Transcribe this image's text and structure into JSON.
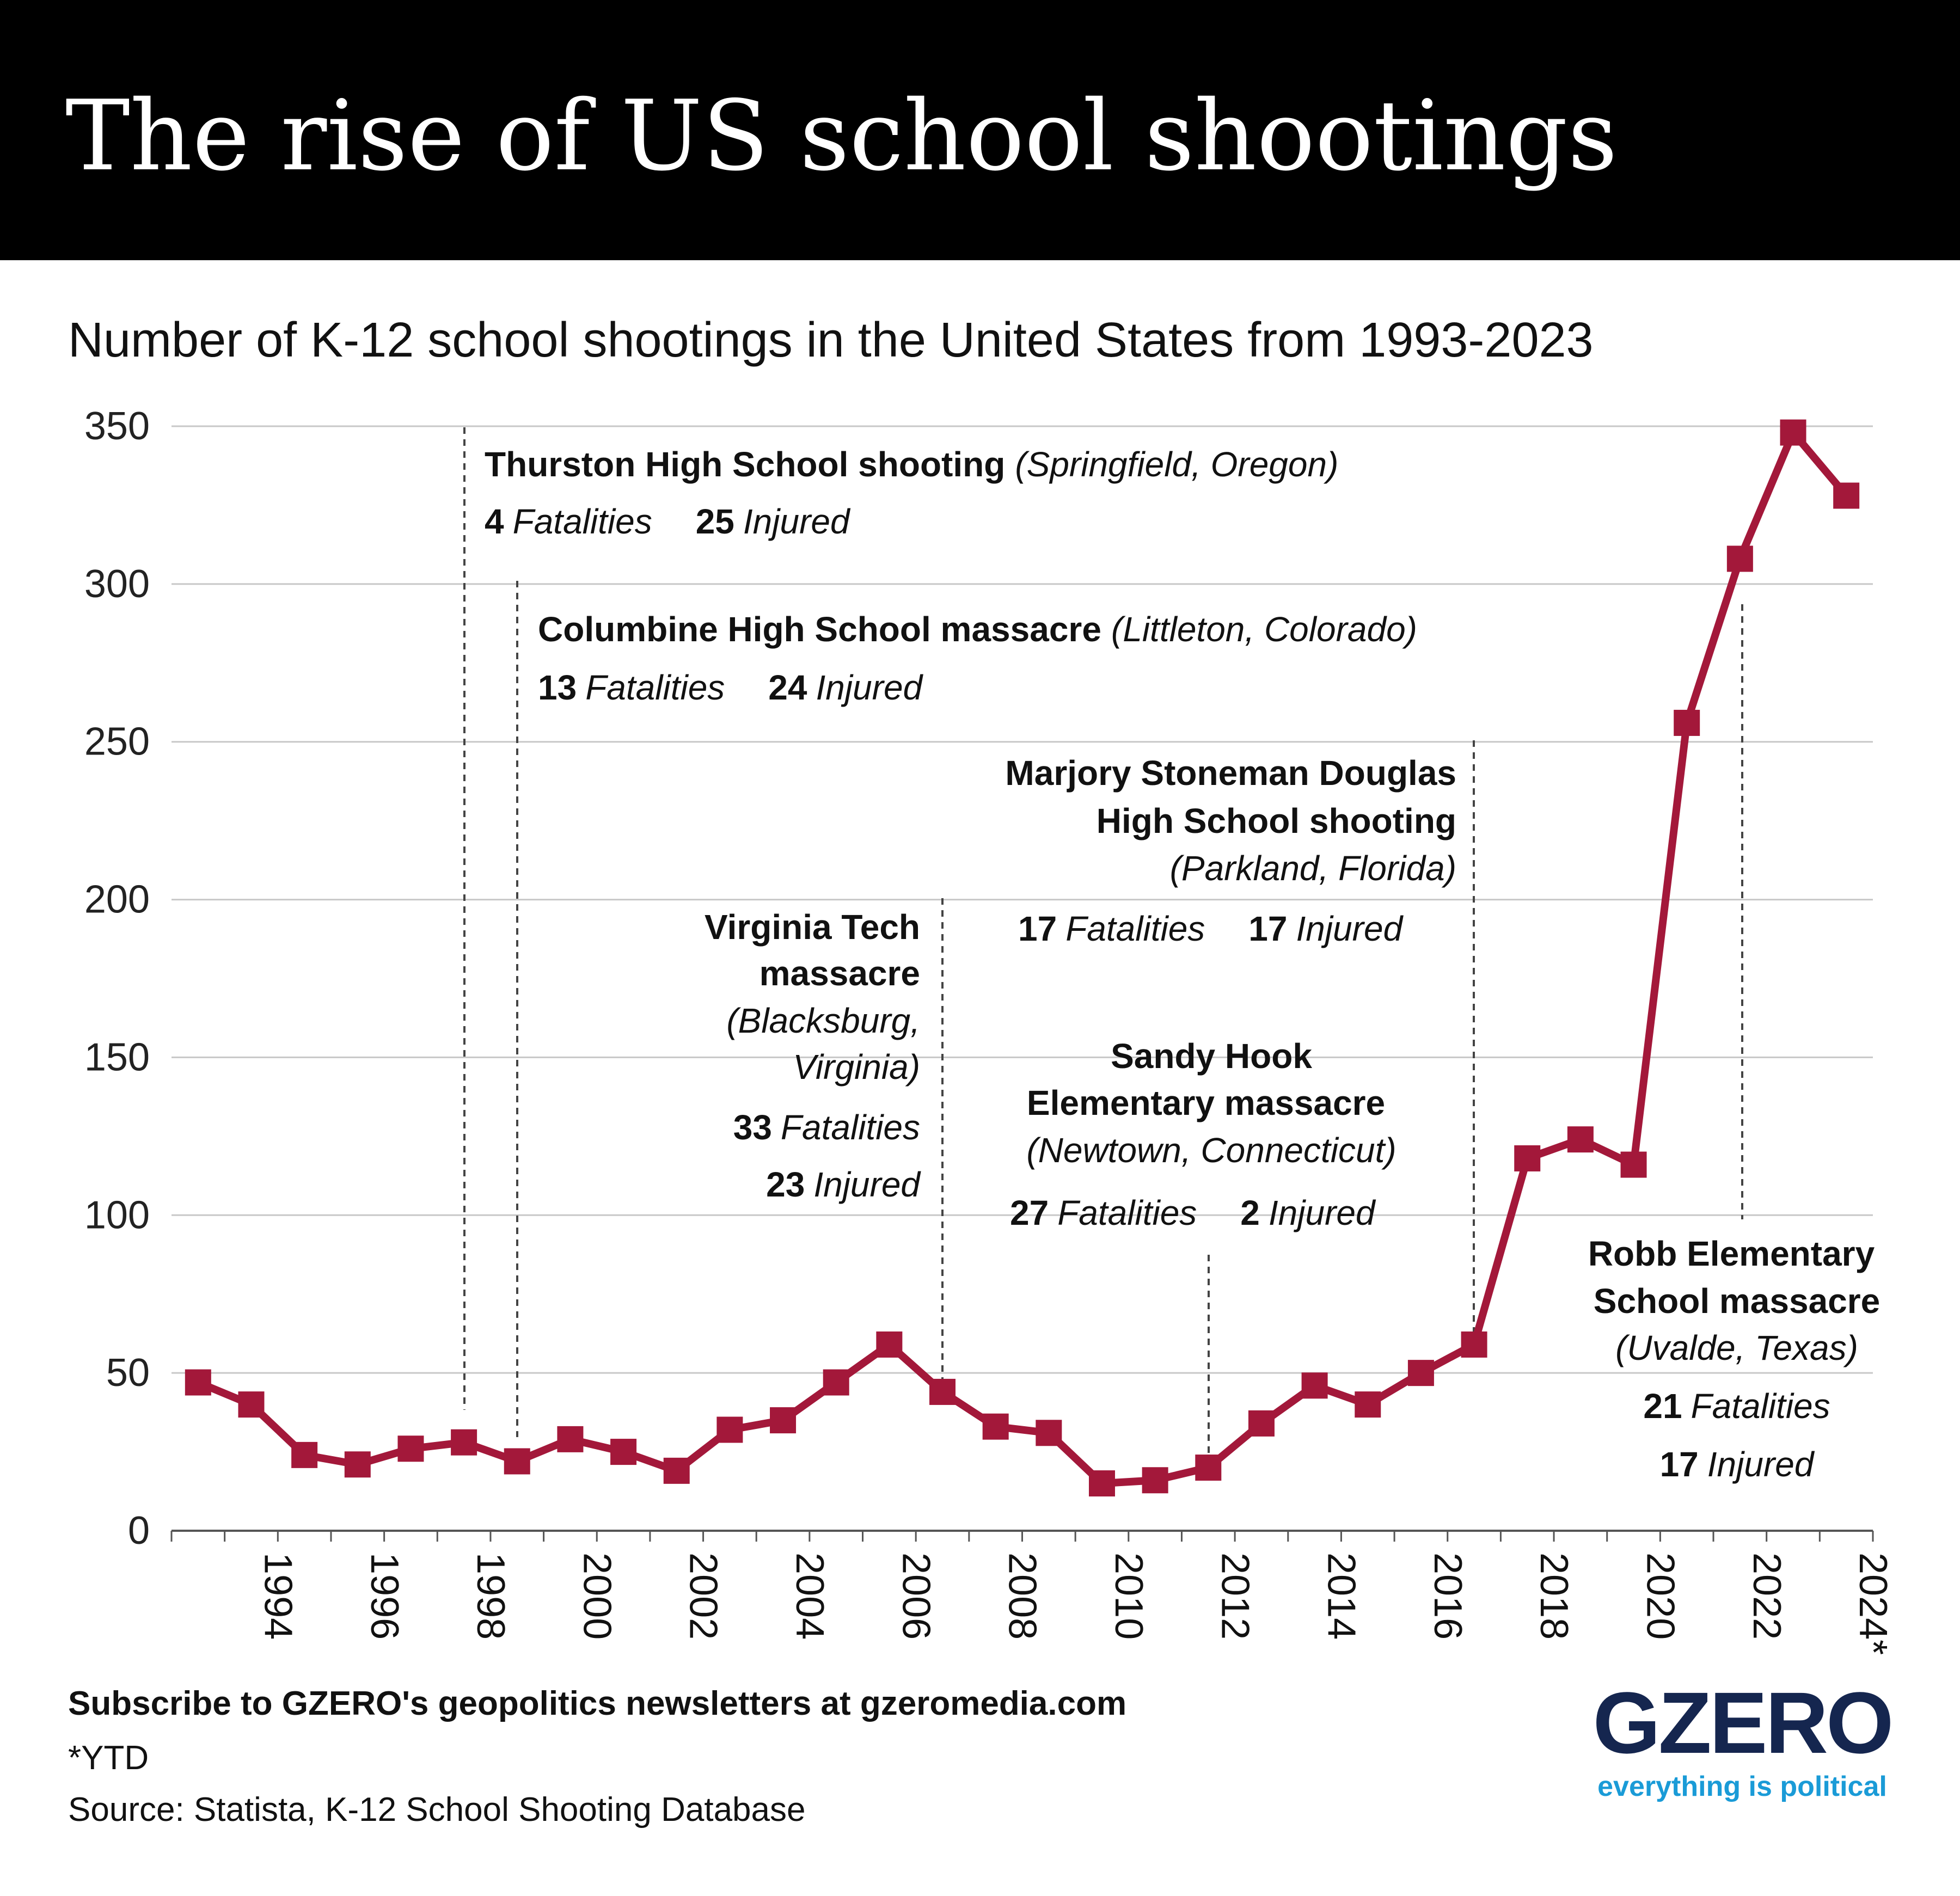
{
  "header": {
    "title": "The rise of US school shootings"
  },
  "subtitle": "Number of K-12 school shootings in the United States from 1993-2023",
  "colors": {
    "line": "#a3183a",
    "grid": "#c8c8c8",
    "header_bg": "#000000",
    "logo_dark": "#15264f",
    "logo_accent": "#1a9bd7"
  },
  "chart_data": {
    "type": "line",
    "title": "Number of K-12 school shootings in the United States from 1993-2023",
    "xlabel": "",
    "ylabel": "",
    "ylim": [
      0,
      350
    ],
    "xlim": [
      1992.5,
      2024.5
    ],
    "yticks": [
      "0",
      "50",
      "100",
      "150",
      "200",
      "250",
      "300",
      "350"
    ],
    "xtick_labels": [
      {
        "x": 1994,
        "label": "1994"
      },
      {
        "x": 1996,
        "label": "1996"
      },
      {
        "x": 1998,
        "label": "1998"
      },
      {
        "x": 2000,
        "label": "2000"
      },
      {
        "x": 2002,
        "label": "2002"
      },
      {
        "x": 2004,
        "label": "2004"
      },
      {
        "x": 2006,
        "label": "2006"
      },
      {
        "x": 2008,
        "label": "2008"
      },
      {
        "x": 2010,
        "label": "2010"
      },
      {
        "x": 2012,
        "label": "2012"
      },
      {
        "x": 2014,
        "label": "2014"
      },
      {
        "x": 2016,
        "label": "2016"
      },
      {
        "x": 2018,
        "label": "2018"
      },
      {
        "x": 2020,
        "label": "2020"
      },
      {
        "x": 2022,
        "label": "2022"
      },
      {
        "x": 2024,
        "label": "2024*"
      }
    ],
    "grid": true,
    "series": [
      {
        "x": [
          1993,
          1994,
          1995,
          1996,
          1997,
          1998,
          1999,
          2000,
          2001,
          2002,
          2003,
          2004,
          2005,
          2006,
          2007,
          2008,
          2009,
          2010,
          2011,
          2012,
          2013,
          2014,
          2015,
          2016,
          2017,
          2018,
          2019,
          2020,
          2021,
          2022,
          2023,
          2024
        ],
        "values": [
          47,
          40,
          24,
          21,
          26,
          28,
          22,
          29,
          25,
          19,
          32,
          35,
          47,
          59,
          44,
          33,
          31,
          15,
          16,
          20,
          34,
          46,
          40,
          50,
          59,
          118,
          124,
          116,
          256,
          308,
          348,
          328
        ]
      }
    ],
    "annotations": [
      {
        "x": 1998,
        "title": "Thurston High School shooting",
        "place": "(Springfield, Oregon)",
        "fatalities_num": "4",
        "fatalities_word": "Fatalities",
        "injured_num": "25",
        "injured_word": "Injured"
      },
      {
        "x": 1999,
        "title": "Columbine High School massacre",
        "place": "(Littleton, Colorado)",
        "fatalities_num": "13",
        "fatalities_word": "Fatalities",
        "injured_num": "24",
        "injured_word": "Injured"
      },
      {
        "x": 2007,
        "title_lines": [
          "Virginia Tech",
          "massacre"
        ],
        "place_lines": [
          "(Blacksburg,",
          "Virginia)"
        ],
        "fatalities_num": "33",
        "fatalities_word": "Fatalities",
        "injured_num": "23",
        "injured_word": "Injured"
      },
      {
        "x": 2012,
        "title_lines": [
          "Sandy Hook",
          "Elementary massacre"
        ],
        "place": "(Newtown, Connecticut)",
        "fatalities_num": "27",
        "fatalities_word": "Fatalities",
        "injured_num": "2",
        "injured_word": "Injured"
      },
      {
        "x": 2018,
        "title_lines": [
          "Marjory Stoneman Douglas",
          "High School shooting"
        ],
        "place": "(Parkland, Florida)",
        "fatalities_num": "17",
        "fatalities_word": "Fatalities",
        "injured_num": "17",
        "injured_word": "Injured"
      },
      {
        "x": 2022,
        "title_lines": [
          "Robb Elementary",
          "School massacre"
        ],
        "place": "(Uvalde, Texas)",
        "fatalities_num": "21",
        "fatalities_word": "Fatalities",
        "injured_num": "17",
        "injured_word": "Injured"
      }
    ]
  },
  "footer": {
    "subscribe": "Subscribe to GZERO's geopolitics newsletters at gzeromedia.com",
    "note": "*YTD",
    "source": "Source: Statista, K-12 School Shooting Database"
  },
  "logo": {
    "word": "GZERO",
    "tagline": "everything is political"
  }
}
